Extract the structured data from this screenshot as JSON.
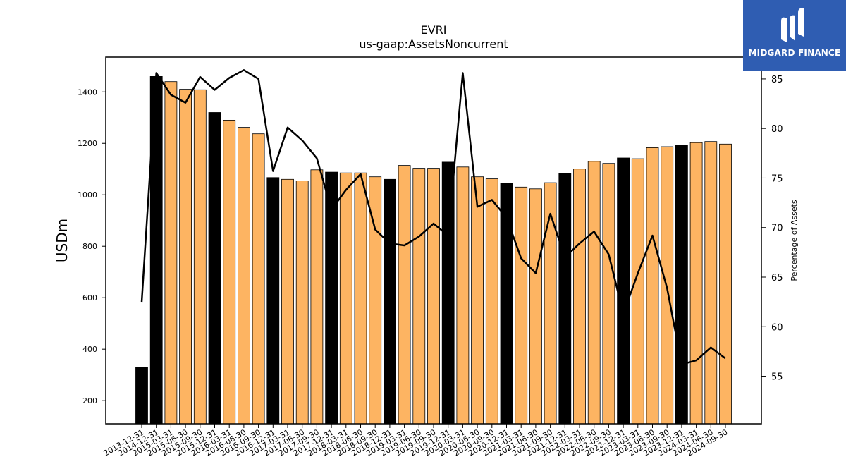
{
  "chart_data": {
    "type": "bar",
    "title": "EVRI",
    "subtitle": "us-gaap:AssetsNoncurrent",
    "ylabel": "USDm",
    "y2label": "Percentage of Assets",
    "ylim": [
      110,
      1535
    ],
    "y2lim": [
      50.2,
      87.2
    ],
    "yticks": [
      200,
      400,
      600,
      800,
      1000,
      1200,
      1400
    ],
    "y2ticks": [
      55,
      60,
      65,
      70,
      75,
      80,
      85
    ],
    "categories": [
      "2013-12-31",
      "2014-12-31",
      "2015-03-31",
      "2015-06-30",
      "2015-09-30",
      "2015-12-31",
      "2016-03-31",
      "2016-06-30",
      "2016-09-30",
      "2016-12-31",
      "2017-03-31",
      "2017-06-30",
      "2017-09-30",
      "2017-12-31",
      "2018-03-31",
      "2018-06-30",
      "2018-09-30",
      "2018-12-31",
      "2019-03-31",
      "2019-06-30",
      "2019-09-30",
      "2019-12-31",
      "2020-03-31",
      "2020-06-30",
      "2020-09-30",
      "2020-12-31",
      "2021-03-31",
      "2021-06-30",
      "2021-09-30",
      "2021-12-31",
      "2022-03-31",
      "2022-06-30",
      "2022-09-30",
      "2022-12-31",
      "2023-03-31",
      "2023-06-30",
      "2023-09-30",
      "2023-12-31",
      "2024-03-31",
      "2024-06-30",
      "2024-09-30"
    ],
    "series": [
      {
        "values": [
          328,
          1460,
          1440,
          1410,
          1408,
          1320,
          1290,
          1262,
          1237,
          1067,
          1060,
          1054,
          1097,
          1088,
          1085,
          1085,
          1070,
          1060,
          1114,
          1103,
          1103,
          1127,
          1108,
          1070,
          1062,
          1044,
          1030,
          1023,
          1047,
          1083,
          1100,
          1130,
          1122,
          1143,
          1140,
          1183,
          1187,
          1193,
          1203,
          1207,
          1197
        ]
      },
      {
        "axis": "right",
        "type": "line",
        "values": [
          62.5,
          85.6,
          83.4,
          82.6,
          85.2,
          83.9,
          85.1,
          85.9,
          85.0,
          75.7,
          80.1,
          78.8,
          77.0,
          71.8,
          73.8,
          75.4,
          69.8,
          68.4,
          68.2,
          69.1,
          70.4,
          69.2,
          85.6,
          72.1,
          72.8,
          71.0,
          66.9,
          65.4,
          71.4,
          67.0,
          68.4,
          69.6,
          67.3,
          61.3,
          65.4,
          69.2,
          63.9,
          56.2,
          56.6,
          57.9,
          56.8
        ]
      }
    ],
    "year_end_color": "#000000",
    "quarter_color": "#fdb462",
    "line_color": "#000000",
    "grid": false,
    "legend": "none"
  },
  "logo": {
    "text": "MIDGARD FINANCE",
    "background": "#2f5db2",
    "icon": "midgard-logo-icon"
  }
}
